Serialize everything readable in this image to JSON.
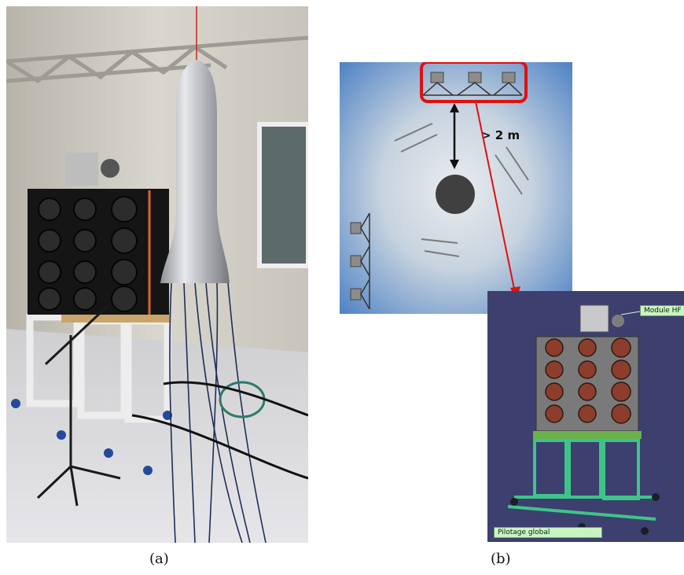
{
  "captions": {
    "a": "(a)",
    "b": "(b)"
  },
  "diagram": {
    "distance_label": "> 2 m"
  },
  "cad": {
    "module_label": "Module HF",
    "control_label": "Pilotage global"
  },
  "colors": {
    "highlight": "#e01010",
    "room_blue": "#4a7fc4",
    "cad_bg": "#3d3f6e",
    "frame_green": "#3ec48a"
  }
}
